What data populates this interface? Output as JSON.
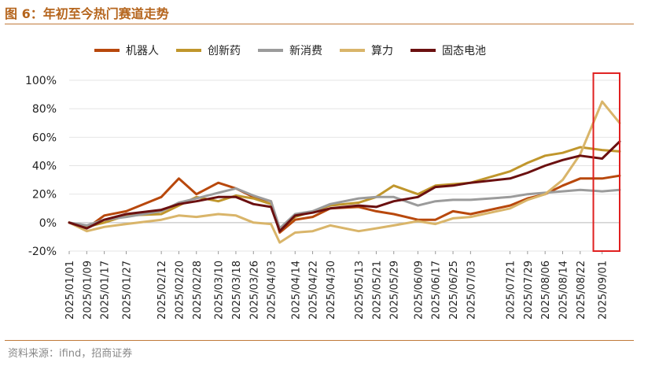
{
  "figure": {
    "title": "图 6：年初至今热门赛道走势",
    "source": "资料来源：ifind，招商证券"
  },
  "chart_data": {
    "type": "line",
    "ylim": [
      -0.2,
      1.0
    ],
    "yticks": [
      -0.2,
      0,
      0.2,
      0.4,
      0.6,
      0.8,
      1.0
    ],
    "ytick_labels": [
      "-20%",
      "0%",
      "20%",
      "40%",
      "60%",
      "80%",
      "100%"
    ],
    "xtick_labels": [
      "2025/01/01",
      "2025/01/09",
      "2025/01/17",
      "2025/01/27",
      "2025/02/12",
      "2025/02/20",
      "2025/02/28",
      "2025/03/10",
      "2025/03/18",
      "2025/03/26",
      "2025/04/03",
      "2025/04/14",
      "2025/04/22",
      "2025/04/30",
      "2025/05/13",
      "2025/05/21",
      "2025/05/29",
      "2025/06/09",
      "2025/06/17",
      "2025/06/25",
      "2025/07/03",
      "2025/07/21",
      "2025/07/29",
      "2025/08/06",
      "2025/08/14",
      "2025/08/22",
      "2025/09/01"
    ],
    "grid": true,
    "legend_position": "top",
    "highlight_box": {
      "x_from": "2025/08/28",
      "x_to": "2025/09/09",
      "y_from": -0.2,
      "y_to": 1.05,
      "color": "#e02020"
    },
    "x": [
      "2025/01/01",
      "2025/01/09",
      "2025/01/17",
      "2025/01/27",
      "2025/02/12",
      "2025/02/20",
      "2025/02/28",
      "2025/03/10",
      "2025/03/18",
      "2025/03/26",
      "2025/04/03",
      "2025/04/07",
      "2025/04/14",
      "2025/04/22",
      "2025/04/30",
      "2025/05/13",
      "2025/05/21",
      "2025/05/29",
      "2025/06/09",
      "2025/06/17",
      "2025/06/25",
      "2025/07/03",
      "2025/07/21",
      "2025/07/29",
      "2025/08/06",
      "2025/08/14",
      "2025/08/22",
      "2025/09/01",
      "2025/09/09"
    ],
    "series": [
      {
        "name": "机器人",
        "color": "#b8480c",
        "values": [
          0,
          -0.04,
          0.05,
          0.08,
          0.18,
          0.31,
          0.2,
          0.28,
          0.24,
          0.18,
          0.15,
          -0.07,
          0.02,
          0.04,
          0.1,
          0.11,
          0.08,
          0.06,
          0.02,
          0.02,
          0.08,
          0.06,
          0.12,
          0.17,
          0.2,
          0.26,
          0.31,
          0.31,
          0.33
        ]
      },
      {
        "name": "创新药",
        "color": "#c0962c",
        "values": [
          0,
          -0.03,
          0.0,
          0.05,
          0.06,
          0.12,
          0.18,
          0.15,
          0.19,
          0.17,
          0.13,
          -0.05,
          0.04,
          0.08,
          0.12,
          0.14,
          0.18,
          0.26,
          0.2,
          0.26,
          0.27,
          0.28,
          0.36,
          0.42,
          0.47,
          0.49,
          0.53,
          0.51,
          0.5
        ]
      },
      {
        "name": "新消费",
        "color": "#9b9b9b",
        "values": [
          0,
          -0.02,
          0.02,
          0.04,
          0.08,
          0.14,
          0.17,
          0.21,
          0.24,
          0.19,
          0.15,
          -0.04,
          0.06,
          0.08,
          0.13,
          0.17,
          0.18,
          0.18,
          0.12,
          0.15,
          0.16,
          0.16,
          0.18,
          0.2,
          0.21,
          0.22,
          0.23,
          0.22,
          0.23
        ]
      },
      {
        "name": "算力",
        "color": "#d9b56a",
        "values": [
          0,
          -0.06,
          -0.03,
          -0.01,
          0.02,
          0.05,
          0.04,
          0.06,
          0.05,
          0.0,
          -0.01,
          -0.14,
          -0.07,
          -0.06,
          -0.02,
          -0.06,
          -0.04,
          -0.02,
          0.01,
          -0.01,
          0.03,
          0.04,
          0.1,
          0.16,
          0.2,
          0.3,
          0.48,
          0.85,
          0.7
        ]
      },
      {
        "name": "固态电池",
        "color": "#6b1010",
        "values": [
          0,
          -0.04,
          0.02,
          0.06,
          0.09,
          0.13,
          0.15,
          0.18,
          0.18,
          0.13,
          0.11,
          -0.06,
          0.05,
          0.07,
          0.1,
          0.12,
          0.11,
          0.15,
          0.18,
          0.25,
          0.26,
          0.28,
          0.31,
          0.35,
          0.4,
          0.44,
          0.47,
          0.45,
          0.57
        ]
      }
    ]
  }
}
